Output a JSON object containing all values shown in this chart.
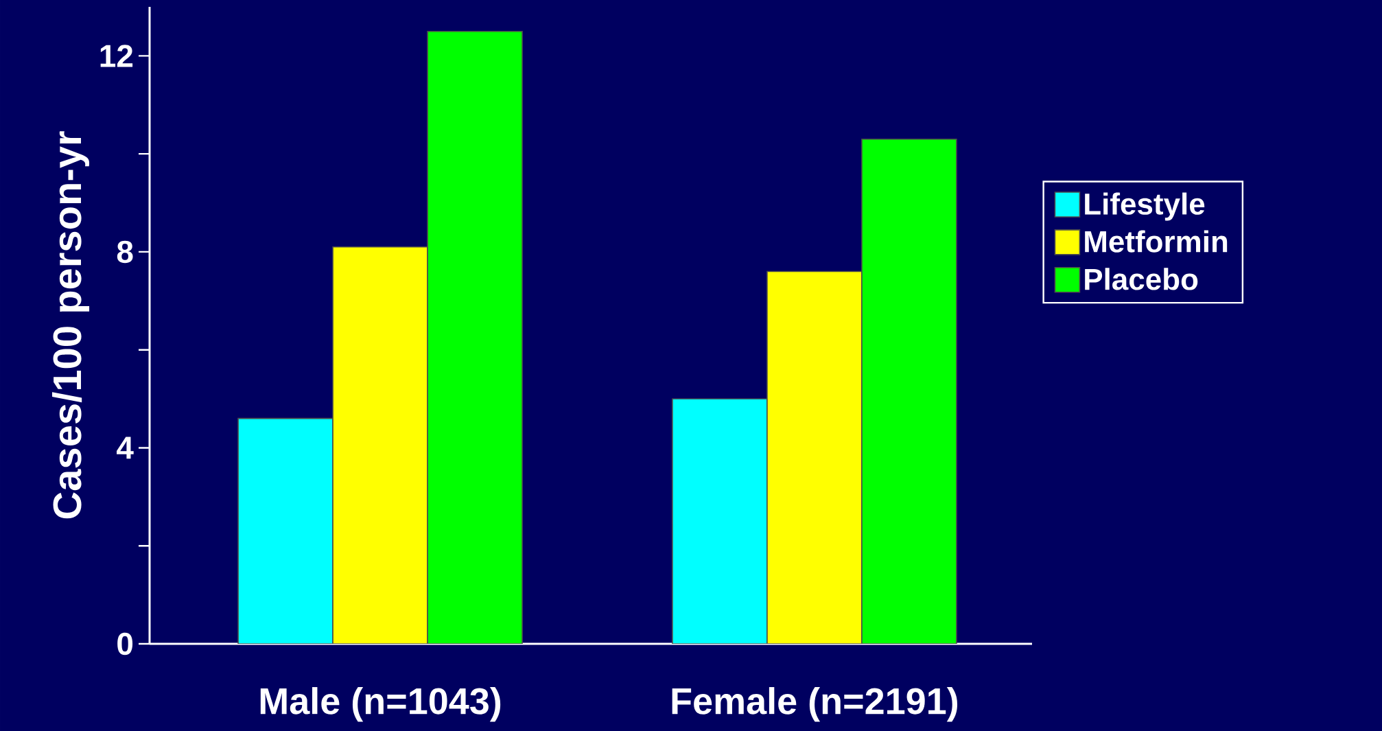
{
  "chart_data": {
    "type": "bar",
    "ylabel": "Cases/100 person-yr",
    "categories": [
      "Male (n=1043)",
      "Female (n=2191)"
    ],
    "series": [
      {
        "name": "Lifestyle",
        "color": "#00ffff",
        "values": [
          4.6,
          5.0
        ]
      },
      {
        "name": "Metformin",
        "color": "#ffff00",
        "values": [
          8.1,
          7.6
        ]
      },
      {
        "name": "Placebo",
        "color": "#00ff00",
        "values": [
          12.5,
          10.3
        ]
      }
    ],
    "ylim": [
      0,
      13
    ],
    "yticks": [
      0,
      {
        "value": 2,
        "label": null
      },
      4,
      {
        "value": 6,
        "label": null
      },
      8,
      {
        "value": 10,
        "label": null
      },
      12
    ],
    "legend": "right",
    "grid": false
  }
}
